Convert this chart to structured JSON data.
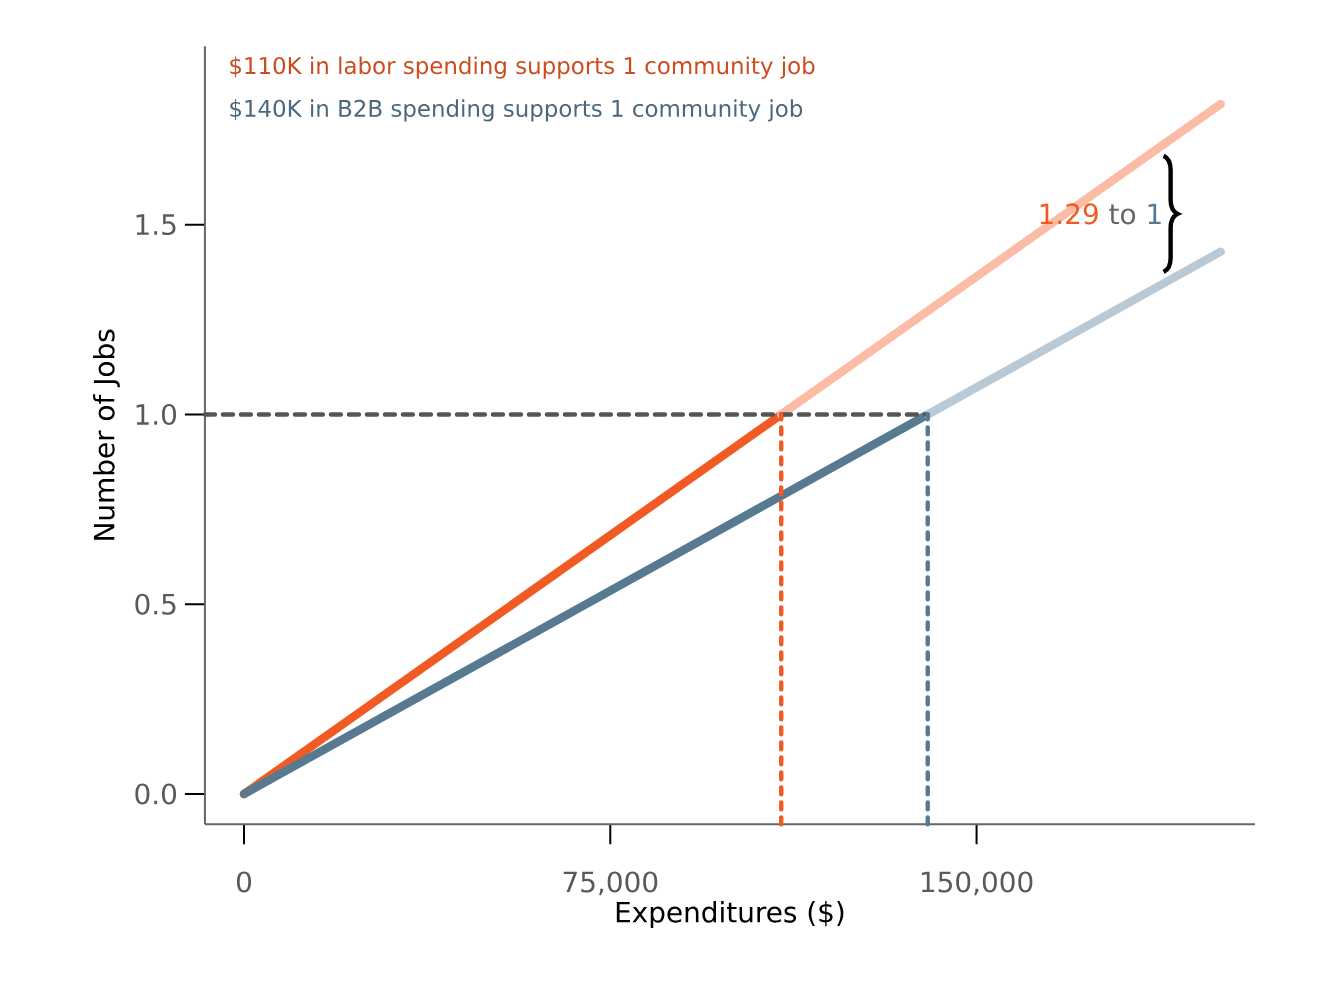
{
  "chart_data": {
    "type": "line",
    "xlabel": "Expenditures ($)",
    "ylabel": "Number of Jobs",
    "xlim": [
      -8000,
      207000
    ],
    "ylim": [
      -0.08,
      1.97
    ],
    "xticks": [
      0,
      {
        "value": 75000,
        "label": "75,000"
      },
      {
        "value": 150000,
        "label": "150,000"
      }
    ],
    "yticks": [
      {
        "value": 0,
        "label": "0.0"
      },
      {
        "value": 0.5,
        "label": "0.5"
      },
      {
        "value": 1,
        "label": "1.0"
      },
      {
        "value": 1.5,
        "label": "1.5"
      }
    ],
    "grid": false,
    "legend": "top left",
    "marker": "none",
    "series": [
      {
        "name": "$110K in labor spending supports 1 community job",
        "color": "#f15a22",
        "x": [
          0,
          110000
        ],
        "values": [
          0,
          1
        ],
        "line_style": "solid"
      },
      {
        "color": "#fbbba5",
        "x": [
          110000,
          200000
        ],
        "values": [
          1,
          1.818
        ],
        "line_style": "solid"
      },
      {
        "name": "$140K in B2B spending supports 1 community job",
        "color": "#587a91",
        "x": [
          0,
          140000
        ],
        "values": [
          0,
          1
        ],
        "line_style": "solid"
      },
      {
        "color": "#b9cad6",
        "x": [
          140000,
          200000
        ],
        "values": [
          1,
          1.429
        ],
        "line_style": "solid"
      },
      {
        "color": "#555555",
        "x": [
          -8000,
          140000
        ],
        "values": [
          1,
          1
        ],
        "line_style": "dashed"
      },
      {
        "color": "#f15a22",
        "x": [
          110000,
          110000
        ],
        "values": [
          -0.08,
          1
        ],
        "line_style": "dotted"
      },
      {
        "color": "#587a91",
        "x": [
          140000,
          140000
        ],
        "values": [
          -0.08,
          1
        ],
        "line_style": "dotted"
      }
    ],
    "annotations": [
      "1.29",
      "to",
      "1"
    ]
  }
}
